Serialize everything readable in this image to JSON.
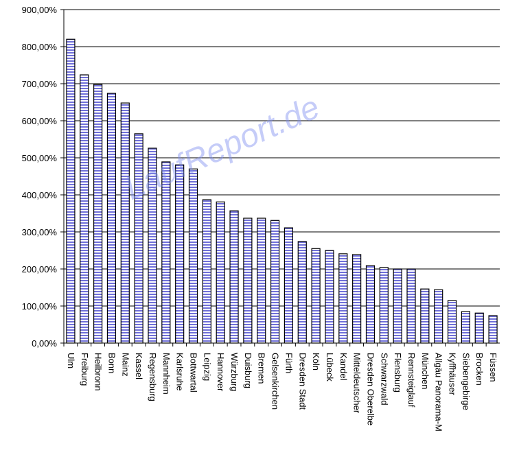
{
  "chart_data": {
    "type": "bar",
    "watermark": "LaufReport.de",
    "categories": [
      "Ulm",
      "Freiburg",
      "Heilbronn",
      "Bonn",
      "Mainz",
      "Kassel",
      "Regensburg",
      "Mannheim",
      "Karlsruhe",
      "Bottwartal",
      "Leipzig",
      "Hannover",
      "Würzburg",
      "Duisburg",
      "Bremen",
      "Gelsenkirchen",
      "Fürth",
      "Dresden Stadt",
      "Köln",
      "Lübeck",
      "Kandel",
      "Mitteldeutscher",
      "Dresden Oberelbe",
      "Schwarzwald",
      "Flensburg",
      "Rennsteiglauf",
      "München",
      "Allgäu Panorama-M",
      "Kyffhäuser",
      "Siebengebirge",
      "Brocken",
      "Füssen"
    ],
    "values": [
      820,
      724,
      698,
      674,
      648,
      565,
      526,
      489,
      481,
      470,
      387,
      381,
      357,
      337,
      337,
      331,
      311,
      274,
      255,
      250,
      241,
      239,
      209,
      204,
      200,
      200,
      146,
      144,
      115,
      85,
      81,
      74
    ],
    "color": "#6f6fd8",
    "ylim": [
      0,
      900
    ],
    "yticks": [
      {
        "value": 0,
        "label": "0,00%"
      },
      {
        "value": 100,
        "label": "100,00%"
      },
      {
        "value": 200,
        "label": "200,00%"
      },
      {
        "value": 300,
        "label": "300,00%"
      },
      {
        "value": 400,
        "label": "400,00%"
      },
      {
        "value": 500,
        "label": "500,00%"
      },
      {
        "value": 600,
        "label": "600,00%"
      },
      {
        "value": 700,
        "label": "700,00%"
      },
      {
        "value": 800,
        "label": "800,00%"
      },
      {
        "value": 900,
        "label": "900,00%"
      }
    ],
    "grid": true
  }
}
